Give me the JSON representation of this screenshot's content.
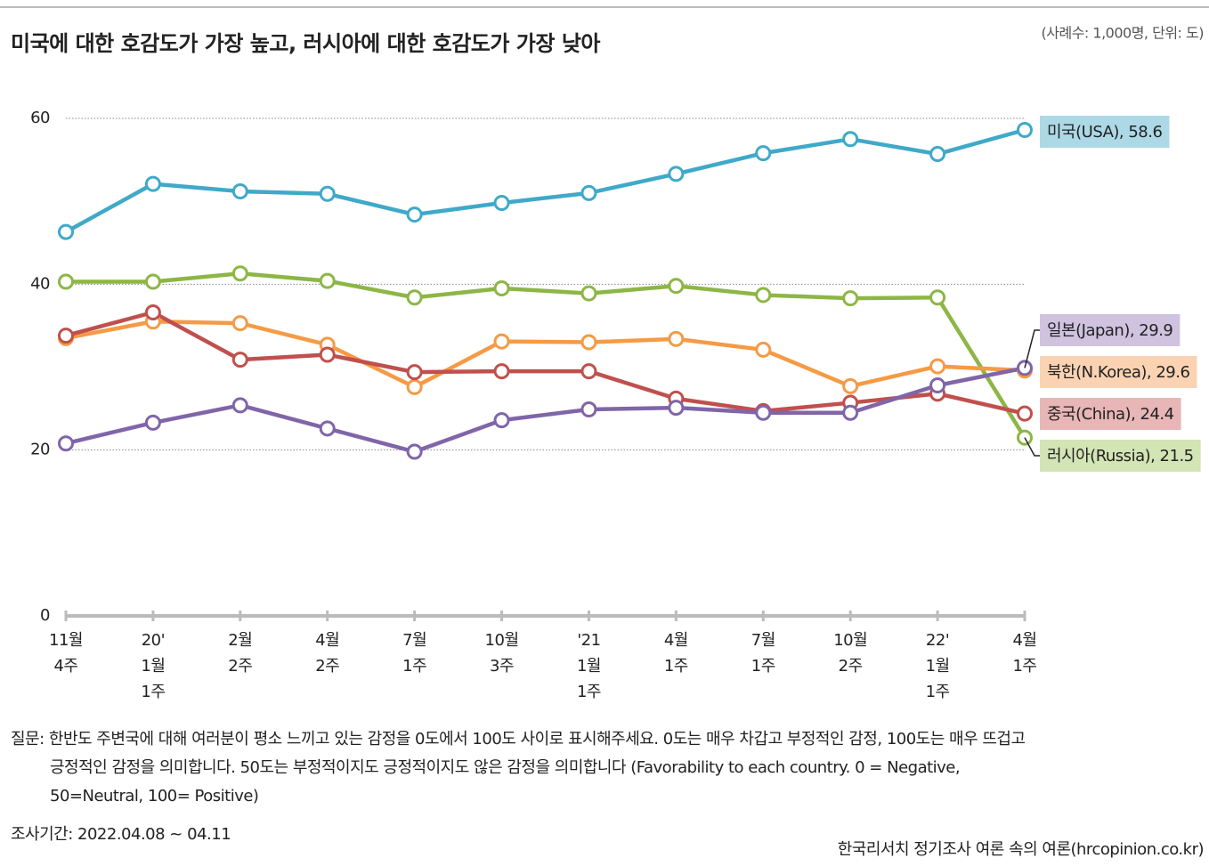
{
  "chart_data": {
    "type": "line",
    "title": "미국에 대한 호감도가 가장 높고, 러시아에 대한 호감도가 가장 낮아",
    "subtitle": "(사례수: 1,000명, 단위: 도)",
    "categories": [
      [
        "11월",
        "4주"
      ],
      [
        "20'",
        "1월",
        "1주"
      ],
      [
        "2월",
        "2주"
      ],
      [
        "4월",
        "2주"
      ],
      [
        "7월",
        "1주"
      ],
      [
        "10월",
        "3주"
      ],
      [
        "'21",
        "1월",
        "1주"
      ],
      [
        "4월",
        "1주"
      ],
      [
        "7월",
        "1주"
      ],
      [
        "10월",
        "2주"
      ],
      [
        "22'",
        "1월",
        "1주"
      ],
      [
        "4월",
        "1주"
      ]
    ],
    "ylim": [
      0,
      60
    ],
    "yticks": [
      0,
      20,
      40,
      60
    ],
    "grid": true,
    "series": [
      {
        "color": "#3fa9c9",
        "label_color": "#add8e6",
        "values": [
          46.3,
          52.1,
          51.2,
          50.9,
          48.4,
          49.8,
          51.0,
          53.3,
          55.8,
          57.5,
          55.7,
          58.6
        ],
        "value_labels": [
          null,
          null,
          null,
          null,
          null,
          null,
          null,
          null,
          null,
          null,
          null,
          "미국(USA), 58.6"
        ]
      },
      {
        "color": "#8db646",
        "label_color": "#d3e4b5",
        "values": [
          40.3,
          40.3,
          41.3,
          40.4,
          38.4,
          39.5,
          38.9,
          39.8,
          38.7,
          38.3,
          38.4,
          21.5
        ],
        "value_labels": [
          null,
          null,
          null,
          null,
          null,
          null,
          null,
          null,
          null,
          null,
          null,
          "러시아(Russia), 21.5"
        ]
      },
      {
        "color": "#f59a45",
        "label_color": "#fbd3b3",
        "values": [
          33.5,
          35.5,
          35.3,
          32.7,
          27.6,
          33.1,
          33.0,
          33.4,
          32.1,
          27.7,
          30.1,
          29.6
        ],
        "value_labels": [
          null,
          null,
          null,
          null,
          null,
          null,
          null,
          null,
          null,
          null,
          null,
          "북한(N.Korea), 29.6"
        ]
      },
      {
        "color": "#c0504d",
        "label_color": "#e8b6b6",
        "values": [
          33.8,
          36.6,
          30.9,
          31.5,
          29.4,
          29.5,
          29.5,
          26.2,
          24.7,
          25.7,
          26.8,
          24.4
        ],
        "value_labels": [
          null,
          null,
          null,
          null,
          null,
          null,
          null,
          null,
          null,
          null,
          null,
          "중국(China), 24.4"
        ]
      },
      {
        "color": "#8065a8",
        "label_color": "#cfc3e0",
        "values": [
          20.8,
          23.3,
          25.4,
          22.6,
          19.8,
          23.6,
          24.9,
          25.1,
          24.5,
          24.5,
          27.8,
          29.9
        ],
        "value_labels": [
          null,
          null,
          null,
          null,
          null,
          null,
          null,
          null,
          null,
          null,
          null,
          "일본(Japan), 29.9"
        ]
      }
    ],
    "footnote": [
      "질문: 한반도 주변국에 대해 여러분이 평소 느끼고 있는 감정을 0도에서 100도 사이로 표시해주세요. 0도는 매우 차갑고 부정적인 감정, 100도는 매우 뜨겁고",
      "긍정적인 감정을 의미합니다. 50도는 부정적이지도 긍정적이지도 않은 감정을 의미합니다 (Favorability to each country. 0 = Negative,",
      "50=Neutral, 100= Positive)"
    ],
    "period": "조사기간: 2022.04.08 ~ 04.11",
    "source": "한국리서치 정기조사 여론 속의 여론(hrcopinion.co.kr)"
  }
}
